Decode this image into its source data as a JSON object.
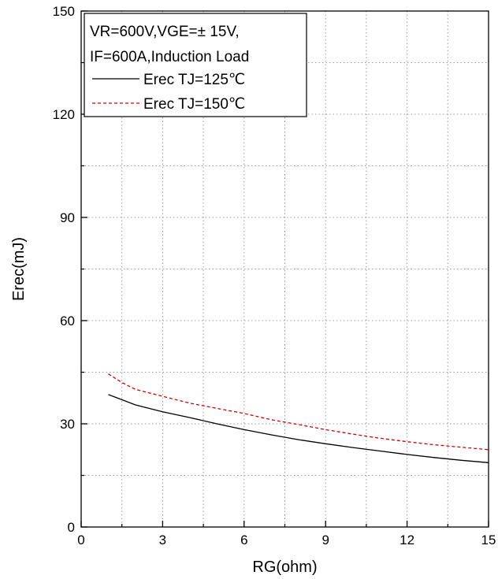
{
  "chart_data": {
    "type": "line",
    "xlabel": "RG(ohm)",
    "ylabel": "Erec(mJ)",
    "xlim": [
      0,
      15
    ],
    "ylim": [
      0,
      150
    ],
    "x_ticks": [
      0,
      3,
      6,
      9,
      12,
      15
    ],
    "y_ticks": [
      0,
      30,
      60,
      90,
      120,
      150
    ],
    "grid": true,
    "legend_position": "top-left",
    "legend_lines": [
      "VR=600V,VGE=± 15V,",
      "IF=600A,Induction Load"
    ],
    "series": [
      {
        "name": "Erec TJ=125℃",
        "color": "#000000",
        "dash": "solid",
        "x": [
          1,
          1.5,
          2,
          2.5,
          3,
          4,
          5,
          6,
          7,
          8,
          9,
          10,
          11,
          12,
          13,
          14,
          15
        ],
        "y": [
          38.5,
          37,
          35.5,
          34.5,
          33.5,
          31.8,
          30,
          28.3,
          26.8,
          25.4,
          24.2,
          23.1,
          22.1,
          21.1,
          20.2,
          19.4,
          18.7
        ]
      },
      {
        "name": "Erec TJ=150℃",
        "color": "#d00000",
        "dash": "dashed",
        "x": [
          1,
          1.5,
          2,
          2.5,
          3,
          4,
          5,
          6,
          7,
          8,
          9,
          10,
          11,
          12,
          13,
          14,
          15
        ],
        "y": [
          44.5,
          42,
          40,
          39,
          38,
          36,
          34.5,
          33,
          31.2,
          29.8,
          28.3,
          27,
          25.8,
          24.8,
          23.9,
          23.2,
          22.5
        ]
      }
    ]
  }
}
